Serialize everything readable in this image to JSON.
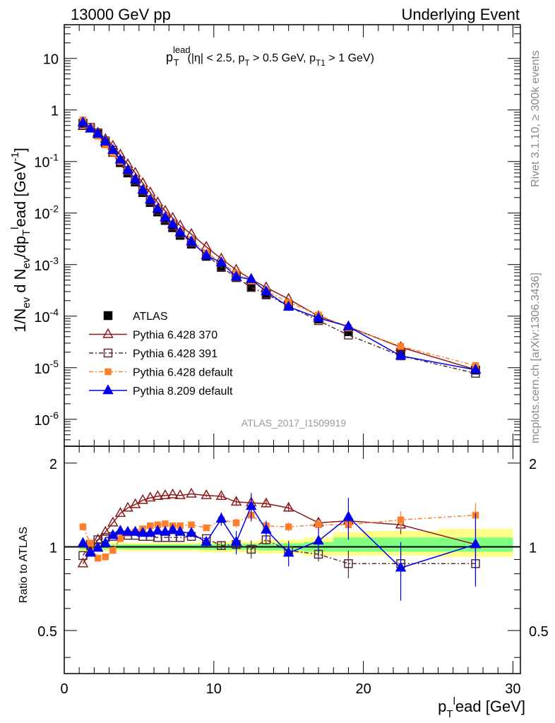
{
  "header": {
    "left": "13000 GeV pp",
    "right": "Underlying Event"
  },
  "side_labels": {
    "rivet": "Rivet 3.1.10, ≥ 300k events",
    "mcplots": "mcplots.cern.ch [arXiv:1306.3436]"
  },
  "plot_title": {
    "p": "p",
    "sup": "lead",
    "sub": "T",
    "rest": "(|η| < 2.5, p",
    "rest_sub": "T",
    "rest2": " > 0.5 GeV, p",
    "rest2_sub": "T1",
    "rest3": " > 1 GeV)"
  },
  "analysis_id": "ATLAS_2017_I1509919",
  "chart_data": [
    {
      "type": "line",
      "panel": "main",
      "yscale": "log",
      "xlim": [
        0,
        30.5
      ],
      "ylim": [
        3e-07,
        45
      ],
      "ylabel": "1/N_ev d N_ev/dp_T^lead [GeV^-1]",
      "xticks": [
        "0",
        "10",
        "20",
        "30"
      ],
      "yticks": [
        "10^-6",
        "10^-5",
        "10^-4",
        "10^-3",
        "10^-2",
        "10^-1",
        "1",
        "10"
      ],
      "series": [
        {
          "name": "ATLAS",
          "color": "#000000",
          "x": [
            1.25,
            1.75,
            2.25,
            2.75,
            3.25,
            3.75,
            4.25,
            4.75,
            5.25,
            5.75,
            6.25,
            6.75,
            7.25,
            7.75,
            8.5,
            9.5,
            10.5,
            11.5,
            12.5,
            13.5,
            15,
            17,
            19,
            22.5,
            27.5
          ],
          "y": [
            0.55,
            0.45,
            0.34,
            0.23,
            0.15,
            0.095,
            0.06,
            0.04,
            0.025,
            0.016,
            0.0105,
            0.0072,
            0.0052,
            0.0037,
            0.0025,
            0.00145,
            0.00088,
            0.00056,
            0.00037,
            0.00026,
            0.00016,
            8.8e-05,
            5e-05,
            2e-05,
            9e-06
          ]
        },
        {
          "name": "Pythia 6.428 370",
          "color": "#8b1a1a",
          "x": [
            1.25,
            1.75,
            2.25,
            2.75,
            3.25,
            3.75,
            4.25,
            4.75,
            5.25,
            5.75,
            6.25,
            6.75,
            7.25,
            7.75,
            8.5,
            9.5,
            10.5,
            11.5,
            12.5,
            13.5,
            15,
            17,
            19,
            22.5,
            27.5
          ],
          "y": [
            0.48,
            0.43,
            0.36,
            0.27,
            0.2,
            0.135,
            0.088,
            0.06,
            0.038,
            0.025,
            0.016,
            0.011,
            0.008,
            0.0057,
            0.0039,
            0.0022,
            0.0013,
            0.00079,
            0.00052,
            0.00036,
            0.000215,
            0.0001,
            6.2e-05,
            2.5e-05,
            9.2e-06
          ]
        },
        {
          "name": "Pythia 6.428 391",
          "color": "#5a2a3a",
          "x": [
            1.25,
            1.75,
            2.25,
            2.75,
            3.25,
            3.75,
            4.25,
            4.75,
            5.25,
            5.75,
            6.25,
            6.75,
            7.25,
            7.75,
            8.5,
            9.5,
            10.5,
            11.5,
            12.5,
            13.5,
            15,
            17,
            19,
            22.5,
            27.5
          ],
          "y": [
            0.51,
            0.46,
            0.36,
            0.25,
            0.165,
            0.105,
            0.066,
            0.043,
            0.027,
            0.0173,
            0.0113,
            0.0077,
            0.0056,
            0.004,
            0.0027,
            0.00155,
            0.00089,
            0.00057,
            0.00036,
            0.00027,
            0.000155,
            8.2e-05,
            4.3e-05,
            1.7e-05,
            7.8e-06
          ]
        },
        {
          "name": "Pythia 6.428 default",
          "color": "#ff7f2a",
          "x": [
            1.25,
            1.75,
            2.25,
            2.75,
            3.25,
            3.75,
            4.25,
            4.75,
            5.25,
            5.75,
            6.25,
            6.75,
            7.25,
            7.75,
            8.5,
            9.5,
            10.5,
            11.5,
            12.5,
            13.5,
            15,
            17,
            19,
            22.5,
            27.5
          ],
          "y": [
            0.64,
            0.47,
            0.31,
            0.21,
            0.145,
            0.1,
            0.067,
            0.045,
            0.029,
            0.019,
            0.0125,
            0.0087,
            0.0062,
            0.0044,
            0.003,
            0.0017,
            0.0011,
            0.00068,
            0.00048,
            0.00031,
            0.000185,
            0.000105,
            6e-05,
            2.6e-05,
            1.1e-05
          ]
        },
        {
          "name": "Pythia 8.209 default",
          "color": "#0000ee",
          "x": [
            1.25,
            1.75,
            2.25,
            2.75,
            3.25,
            3.75,
            4.25,
            4.75,
            5.25,
            5.75,
            6.25,
            6.75,
            7.25,
            7.75,
            8.5,
            9.5,
            10.5,
            11.5,
            12.5,
            13.5,
            15,
            17,
            19,
            22.5,
            27.5
          ],
          "y": [
            0.57,
            0.43,
            0.34,
            0.24,
            0.165,
            0.108,
            0.068,
            0.045,
            0.028,
            0.018,
            0.012,
            0.0082,
            0.006,
            0.0042,
            0.0028,
            0.0015,
            0.0011,
            0.00058,
            0.00052,
            0.0003,
            0.000152,
            9.2e-05,
            6.3e-05,
            1.7e-05,
            9.1e-06
          ]
        }
      ]
    },
    {
      "type": "line",
      "panel": "ratio",
      "xlim": [
        0,
        30.5
      ],
      "ylim": [
        0.35,
        2.3
      ],
      "xlabel": "p_T^lead [GeV]",
      "ylabel": "Ratio to ATLAS",
      "xticks": [
        "0",
        "10",
        "20",
        "30"
      ],
      "yticks": [
        "0.5",
        "1",
        "2"
      ],
      "series": [
        {
          "name": "Pythia 6.428 370",
          "x": [
            1.25,
            1.75,
            2.25,
            2.75,
            3.25,
            3.75,
            4.25,
            4.75,
            5.25,
            5.75,
            6.25,
            6.75,
            7.25,
            7.75,
            8.5,
            9.5,
            10.5,
            11.5,
            12.5,
            13.5,
            15,
            17,
            19,
            22.5,
            27.5
          ],
          "y": [
            0.87,
            0.96,
            1.06,
            1.13,
            1.22,
            1.32,
            1.38,
            1.42,
            1.47,
            1.5,
            1.52,
            1.53,
            1.54,
            1.53,
            1.55,
            1.53,
            1.52,
            1.45,
            1.44,
            1.43,
            1.38,
            1.22,
            1.24,
            1.2,
            1.02
          ]
        },
        {
          "name": "Pythia 6.428 391",
          "x": [
            1.25,
            1.75,
            2.25,
            2.75,
            3.25,
            3.75,
            4.25,
            4.75,
            5.25,
            5.75,
            6.25,
            6.75,
            7.25,
            7.75,
            8.5,
            9.5,
            10.5,
            11.5,
            12.5,
            13.5,
            15,
            17,
            19,
            22.5,
            27.5
          ],
          "y": [
            0.93,
            1.02,
            1.06,
            1.08,
            1.09,
            1.1,
            1.1,
            1.1,
            1.09,
            1.09,
            1.08,
            1.08,
            1.08,
            1.08,
            1.09,
            1.07,
            1.01,
            1.02,
            0.98,
            1.06,
            0.97,
            0.94,
            0.87,
            0.87,
            0.87
          ]
        },
        {
          "name": "Pythia 6.428 default",
          "x": [
            1.25,
            1.75,
            2.25,
            2.75,
            3.25,
            3.75,
            4.25,
            4.75,
            5.25,
            5.75,
            6.25,
            6.75,
            7.25,
            7.75,
            8.5,
            9.5,
            10.5,
            11.5,
            12.5,
            13.5,
            15,
            17,
            19,
            22.5,
            27.5
          ],
          "y": [
            1.18,
            1.03,
            0.91,
            0.92,
            0.97,
            1.07,
            1.12,
            1.13,
            1.16,
            1.19,
            1.2,
            1.21,
            1.19,
            1.19,
            1.2,
            1.17,
            1.25,
            1.22,
            1.3,
            1.19,
            1.18,
            1.2,
            1.2,
            1.25,
            1.3
          ]
        },
        {
          "name": "Pythia 8.209 default",
          "x": [
            1.25,
            1.75,
            2.25,
            2.75,
            3.25,
            3.75,
            4.25,
            4.75,
            5.25,
            5.75,
            6.25,
            6.75,
            7.25,
            7.75,
            8.5,
            9.5,
            10.5,
            11.5,
            12.5,
            13.5,
            15,
            17,
            19,
            22.5,
            27.5
          ],
          "y": [
            1.03,
            0.95,
            0.99,
            1.03,
            1.1,
            1.14,
            1.13,
            1.13,
            1.12,
            1.12,
            1.14,
            1.13,
            1.15,
            1.13,
            1.12,
            1.04,
            1.26,
            1.04,
            1.4,
            1.15,
            0.95,
            1.05,
            1.28,
            0.84,
            1.02
          ]
        }
      ]
    }
  ],
  "colors": {
    "data": "#000000",
    "p370": "#8b1a1a",
    "p391": "#5a2a3a",
    "p6def": "#ff7f2a",
    "p8def": "#0000ee",
    "band_outer": "#ffff88",
    "band_inner": "#80ff80"
  }
}
